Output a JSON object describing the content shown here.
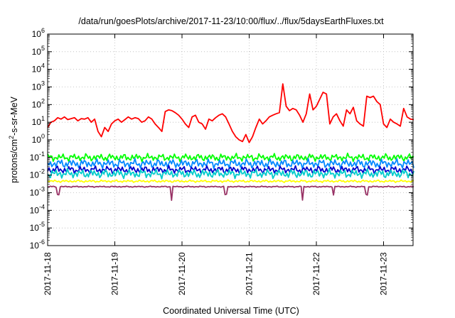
{
  "chart_data": {
    "type": "line",
    "title": "/data/run/goesPlots/archive/2017-11-23/10:00/flux/../flux/5daysEarthFluxes.txt",
    "xlabel": "Coordinated Universal Time (UTC)",
    "ylabel": "protons/cm²-s-sr-MeV",
    "ylabel_parts": {
      "base": "protons/cm",
      "sup": "2",
      "rest": "-s-sr-MeV"
    },
    "x_ticks": [
      "2017-11-18",
      "2017-11-19",
      "2017-11-20",
      "2017-11-21",
      "2017-11-22",
      "2017-11-23"
    ],
    "y_scale": "log",
    "ylim": [
      1e-06,
      1000000.0
    ],
    "y_ticks": [
      {
        "base": "10",
        "exp": "-6"
      },
      {
        "base": "10",
        "exp": "-5"
      },
      {
        "base": "10",
        "exp": "-4"
      },
      {
        "base": "10",
        "exp": "-3"
      },
      {
        "base": "10",
        "exp": "-2"
      },
      {
        "base": "10",
        "exp": "-1"
      },
      {
        "base": "10",
        "exp": "0"
      },
      {
        "base": "10",
        "exp": "1"
      },
      {
        "base": "10",
        "exp": "2"
      },
      {
        "base": "10",
        "exp": "3"
      },
      {
        "base": "10",
        "exp": "4"
      },
      {
        "base": "10",
        "exp": "5"
      },
      {
        "base": "10",
        "exp": "6"
      }
    ],
    "xlim_days": [
      0,
      5.45
    ],
    "grid": true,
    "legend": "none",
    "series": [
      {
        "color": "#ff0000",
        "x": [
          0,
          0.05,
          0.1,
          0.15,
          0.2,
          0.25,
          0.3,
          0.35,
          0.4,
          0.45,
          0.5,
          0.55,
          0.6,
          0.65,
          0.7,
          0.75,
          0.8,
          0.85,
          0.9,
          0.95,
          1.0,
          1.05,
          1.1,
          1.15,
          1.2,
          1.25,
          1.3,
          1.35,
          1.4,
          1.45,
          1.5,
          1.55,
          1.6,
          1.65,
          1.7,
          1.75,
          1.8,
          1.85,
          1.9,
          1.95,
          2.0,
          2.05,
          2.1,
          2.15,
          2.2,
          2.25,
          2.3,
          2.35,
          2.4,
          2.45,
          2.5,
          2.55,
          2.6,
          2.65,
          2.7,
          2.75,
          2.8,
          2.85,
          2.9,
          2.95,
          3.0,
          3.05,
          3.1,
          3.15,
          3.2,
          3.25,
          3.3,
          3.35,
          3.4,
          3.45,
          3.5,
          3.55,
          3.6,
          3.65,
          3.7,
          3.75,
          3.8,
          3.85,
          3.9,
          3.95,
          4.0,
          4.05,
          4.1,
          4.15,
          4.2,
          4.25,
          4.3,
          4.35,
          4.4,
          4.45,
          4.5,
          4.55,
          4.6,
          4.65,
          4.7,
          4.75,
          4.8,
          4.85,
          4.9,
          4.95,
          5.0,
          5.05,
          5.1,
          5.15,
          5.2,
          5.25,
          5.3,
          5.35,
          5.4,
          5.45
        ],
        "y": [
          5,
          10,
          12,
          18,
          15,
          20,
          14,
          16,
          18,
          12,
          16,
          15,
          18,
          10,
          15,
          3,
          1.5,
          5,
          3,
          8,
          12,
          15,
          10,
          14,
          20,
          15,
          18,
          16,
          10,
          12,
          20,
          15,
          8,
          5,
          3,
          40,
          50,
          45,
          35,
          25,
          15,
          8,
          5,
          20,
          25,
          10,
          8,
          4,
          15,
          12,
          18,
          25,
          30,
          20,
          8,
          3,
          1.5,
          1,
          0.8,
          2,
          0.7,
          1.5,
          5,
          15,
          8,
          12,
          20,
          25,
          30,
          35,
          1500,
          80,
          45,
          60,
          50,
          25,
          10,
          30,
          400,
          50,
          80,
          200,
          500,
          400,
          8,
          20,
          30,
          12,
          6,
          50,
          30,
          70,
          12,
          8,
          6,
          300,
          250,
          300,
          150,
          100,
          8,
          5,
          15,
          10,
          8,
          6,
          60,
          20,
          15,
          14
        ]
      },
      {
        "color": "#00ff00",
        "base": 0.1,
        "amp": 0.25
      },
      {
        "color": "#0088ff",
        "base": 0.045,
        "amp": 0.3
      },
      {
        "color": "#0000cc",
        "base": 0.02,
        "amp": 0.25
      },
      {
        "color": "#00cccc",
        "base": 0.012,
        "amp": 0.3
      },
      {
        "color": "#ffff00",
        "base": 0.0045,
        "amp": 0.08
      },
      {
        "color": "#993366",
        "base": 0.0022,
        "amp": 0.04
      }
    ]
  }
}
